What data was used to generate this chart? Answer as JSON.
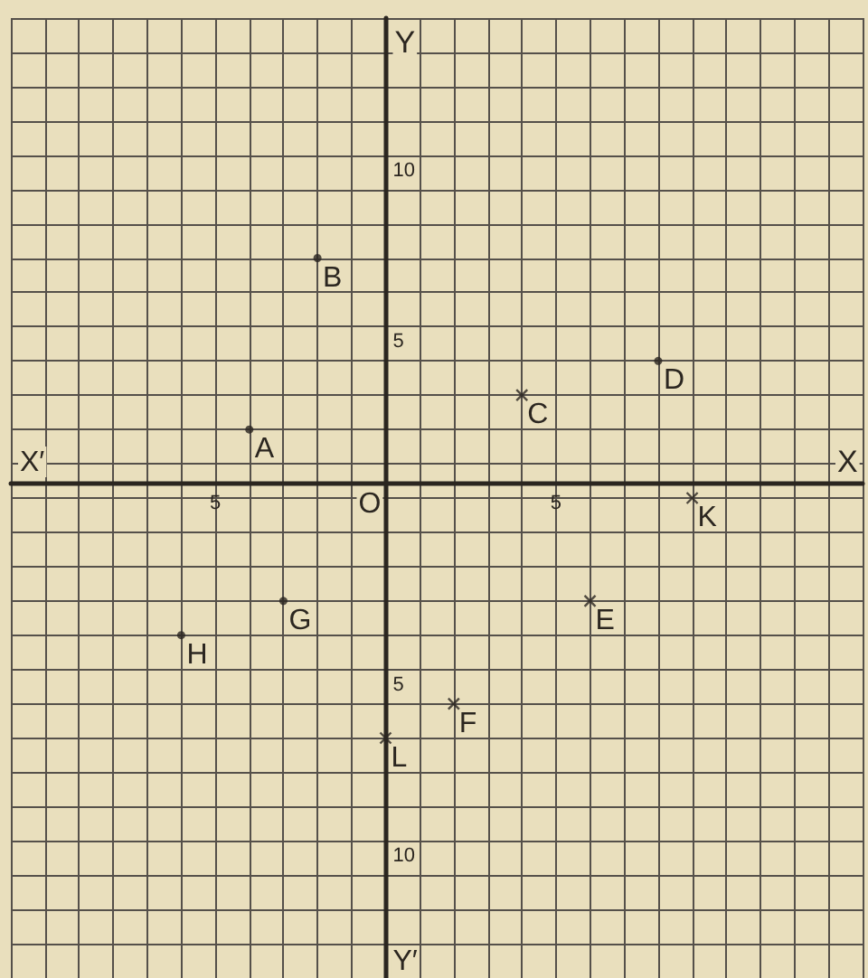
{
  "chart_data": {
    "type": "scatter",
    "xlabel": "X",
    "ylabel": "Y",
    "series": [
      {
        "type": "scatter",
        "marker": "circle",
        "color": "#2b2620",
        "x": [
          -4,
          -2,
          8,
          -3,
          -6
        ],
        "values": [
          2,
          7,
          4,
          -3,
          -4
        ]
      },
      {
        "type": "scatter",
        "marker": "cross",
        "color": "#2b2620",
        "x": [
          4,
          6,
          2,
          9,
          0
        ],
        "values": [
          3,
          -3,
          -6,
          0,
          -7
        ]
      }
    ],
    "xlim": [
      -11,
      14
    ],
    "ylim": [
      -14,
      14
    ],
    "xticks": [
      {
        "value": -11,
        "label": null
      },
      {
        "value": -10,
        "label": null
      },
      {
        "value": -9,
        "label": null
      },
      {
        "value": -8,
        "label": null
      },
      {
        "value": -7,
        "label": null
      },
      {
        "value": -6,
        "label": null
      },
      {
        "value": -5,
        "label": "5"
      },
      {
        "value": -4,
        "label": null
      },
      {
        "value": -3,
        "label": null
      },
      {
        "value": -2,
        "label": null
      },
      {
        "value": -1,
        "label": null
      },
      {
        "value": 0,
        "label": null
      },
      {
        "value": 1,
        "label": null
      },
      {
        "value": 2,
        "label": null
      },
      {
        "value": 3,
        "label": null
      },
      {
        "value": 4,
        "label": null
      },
      {
        "value": 5,
        "label": "5"
      },
      {
        "value": 6,
        "label": null
      },
      {
        "value": 7,
        "label": null
      },
      {
        "value": 8,
        "label": null
      },
      {
        "value": 9,
        "label": null
      },
      {
        "value": 10,
        "label": null
      },
      {
        "value": 11,
        "label": null
      },
      {
        "value": 12,
        "label": null
      },
      {
        "value": 13,
        "label": null
      },
      {
        "value": 14,
        "label": null
      }
    ],
    "yticks": [
      {
        "value": -13,
        "label": null
      },
      {
        "value": -12,
        "label": null
      },
      {
        "value": -11,
        "label": null
      },
      {
        "value": -10,
        "label": "10"
      },
      {
        "value": -9,
        "label": null
      },
      {
        "value": -8,
        "label": null
      },
      {
        "value": -7,
        "label": null
      },
      {
        "value": -6,
        "label": null
      },
      {
        "value": -5,
        "label": "5"
      },
      {
        "value": -4,
        "label": null
      },
      {
        "value": -3,
        "label": null
      },
      {
        "value": -2,
        "label": null
      },
      {
        "value": -1,
        "label": null
      },
      {
        "value": 0,
        "label": null
      },
      {
        "value": 1,
        "label": null
      },
      {
        "value": 2,
        "label": null
      },
      {
        "value": 3,
        "label": null
      },
      {
        "value": 4,
        "label": null
      },
      {
        "value": 5,
        "label": "5"
      },
      {
        "value": 6,
        "label": null
      },
      {
        "value": 7,
        "label": null
      },
      {
        "value": 8,
        "label": null
      },
      {
        "value": 9,
        "label": null
      },
      {
        "value": 10,
        "label": "10"
      },
      {
        "value": 11,
        "label": null
      },
      {
        "value": 12,
        "label": null
      },
      {
        "value": 13,
        "label": null
      },
      {
        "value": 14,
        "label": null
      }
    ],
    "grid": true,
    "annotations": [
      {
        "text": "A",
        "x": -4,
        "y": 2
      },
      {
        "text": "B",
        "x": -2,
        "y": 7
      },
      {
        "text": "C",
        "x": 4,
        "y": 3
      },
      {
        "text": "D",
        "x": 8,
        "y": 4
      },
      {
        "text": "E",
        "x": 6,
        "y": -3
      },
      {
        "text": "F",
        "x": 2,
        "y": -6
      },
      {
        "text": "G",
        "x": -3,
        "y": -3
      },
      {
        "text": "H",
        "x": -6,
        "y": -4
      },
      {
        "text": "K",
        "x": 9,
        "y": 0
      },
      {
        "text": "L",
        "x": 0,
        "y": -7
      },
      "O",
      "X′",
      "Y′"
    ]
  }
}
